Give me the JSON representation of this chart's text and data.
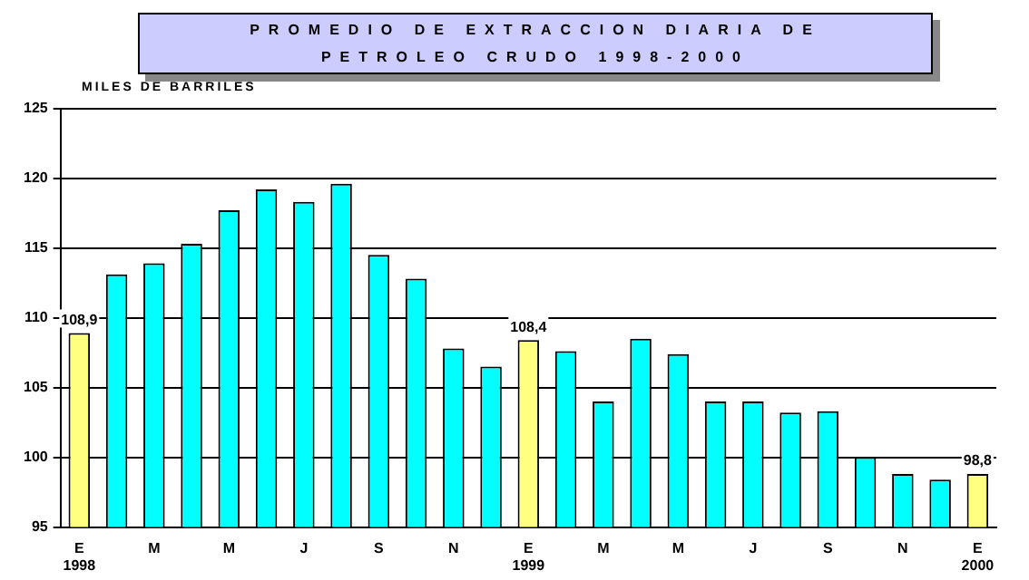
{
  "chart_data": {
    "type": "bar",
    "title": "PROMEDIO DE EXTRACCION DIARIA DE PETROLEO CRUDO 1998-2000",
    "ylabel": "MILES DE BARRILES",
    "categories": [
      "E\n1998",
      null,
      "M",
      null,
      "M",
      null,
      "J",
      null,
      "S",
      null,
      "N",
      null,
      "E\n1999",
      null,
      "M",
      null,
      "M",
      null,
      "J",
      null,
      "S",
      null,
      "N",
      null,
      "E\n2000"
    ],
    "values": [
      108.9,
      113.1,
      113.9,
      115.3,
      117.7,
      119.2,
      118.3,
      119.6,
      114.5,
      112.8,
      107.8,
      106.5,
      108.4,
      107.6,
      104.0,
      108.5,
      107.4,
      104.0,
      104.0,
      103.2,
      103.3,
      100.0,
      98.8,
      98.4,
      98.8
    ],
    "colors": [
      "#ffff80",
      "#00ffff",
      "#00ffff",
      "#00ffff",
      "#00ffff",
      "#00ffff",
      "#00ffff",
      "#00ffff",
      "#00ffff",
      "#00ffff",
      "#00ffff",
      "#00ffff",
      "#ffff80",
      "#00ffff",
      "#00ffff",
      "#00ffff",
      "#00ffff",
      "#00ffff",
      "#00ffff",
      "#00ffff",
      "#00ffff",
      "#00ffff",
      "#00ffff",
      "#00ffff",
      "#ffff80"
    ],
    "value_labels": [
      "108,9",
      null,
      null,
      null,
      null,
      null,
      null,
      null,
      null,
      null,
      null,
      null,
      "108,4",
      null,
      null,
      null,
      null,
      null,
      null,
      null,
      null,
      null,
      null,
      null,
      "98,8"
    ],
    "ylim": [
      95,
      125
    ],
    "yticks": [
      95,
      100,
      105,
      110,
      115,
      120,
      125
    ],
    "grid": "y",
    "legend": false
  }
}
